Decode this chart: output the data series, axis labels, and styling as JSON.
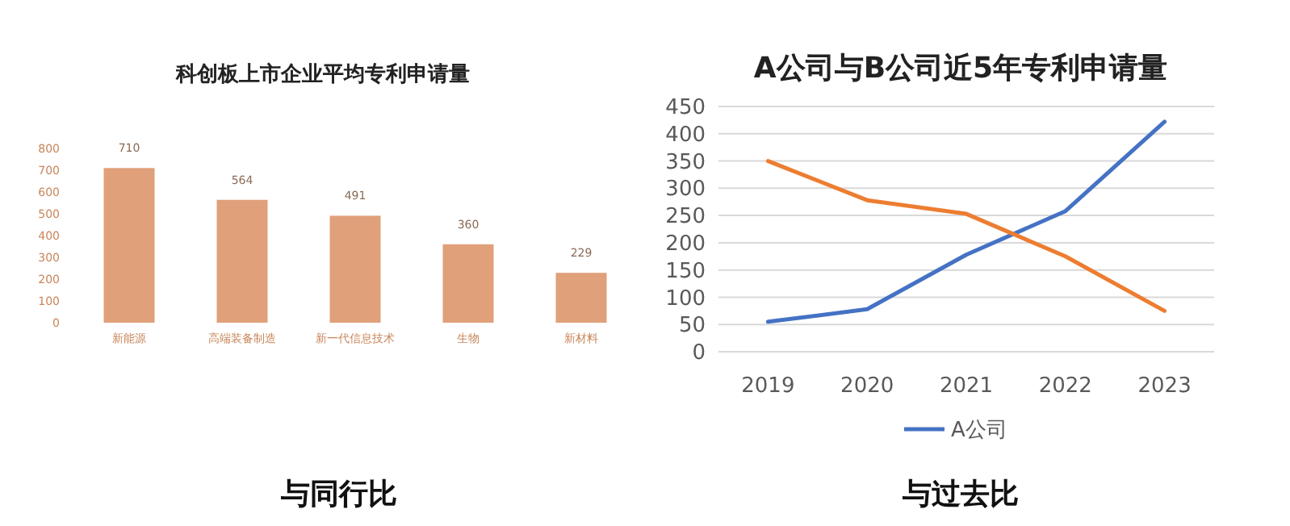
{
  "chart_data": [
    {
      "type": "bar",
      "title": "科创板上市企业平均专利申请量",
      "categories": [
        "新能源",
        "高端装备制造",
        "新一代信息技术",
        "生物",
        "新材料"
      ],
      "values": [
        710,
        564,
        491,
        360,
        229
      ],
      "color": "#e0a07a",
      "ylim": [
        0,
        800
      ],
      "yticks": [
        0,
        100,
        200,
        300,
        400,
        500,
        600,
        700,
        800
      ],
      "grid": false,
      "data_labels": true,
      "annotations": [
        "与同行比"
      ]
    },
    {
      "type": "line",
      "title": "A公司与B公司近5年专利申请量",
      "categories": [
        "2019",
        "2020",
        "2021",
        "2022",
        "2023"
      ],
      "series": [
        {
          "name": "A公司",
          "color": "#4472c4",
          "values": [
            55,
            78,
            178,
            258,
            422
          ]
        },
        {
          "color": "#ed7d31",
          "values": [
            350,
            278,
            253,
            175,
            75
          ]
        }
      ],
      "ylim": [
        0,
        450
      ],
      "yticks": [
        0,
        50,
        100,
        150,
        200,
        250,
        300,
        350,
        400,
        450
      ],
      "grid": "y",
      "legend": "bottom",
      "annotations": [
        "与过去比"
      ]
    }
  ]
}
